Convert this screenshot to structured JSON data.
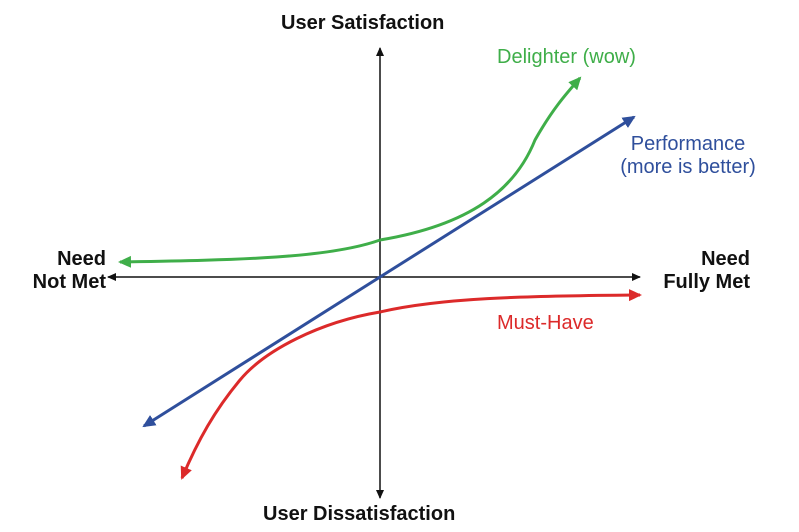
{
  "axes": {
    "top_label": "User Satisfaction",
    "bottom_label": "User Dissatisfaction",
    "left_label_line1": "Need",
    "left_label_line2": "Not Met",
    "right_label_line1": "Need",
    "right_label_line2": "Fully Met"
  },
  "curves": {
    "delighter": {
      "label": "Delighter (wow)",
      "color": "#3fae49"
    },
    "performance": {
      "label_line1": "Performance",
      "label_line2": "(more is better)",
      "color": "#2f4f9c"
    },
    "must_have": {
      "label": "Must-Have",
      "color": "#dc2a2a"
    }
  },
  "axis_color": "#111111"
}
